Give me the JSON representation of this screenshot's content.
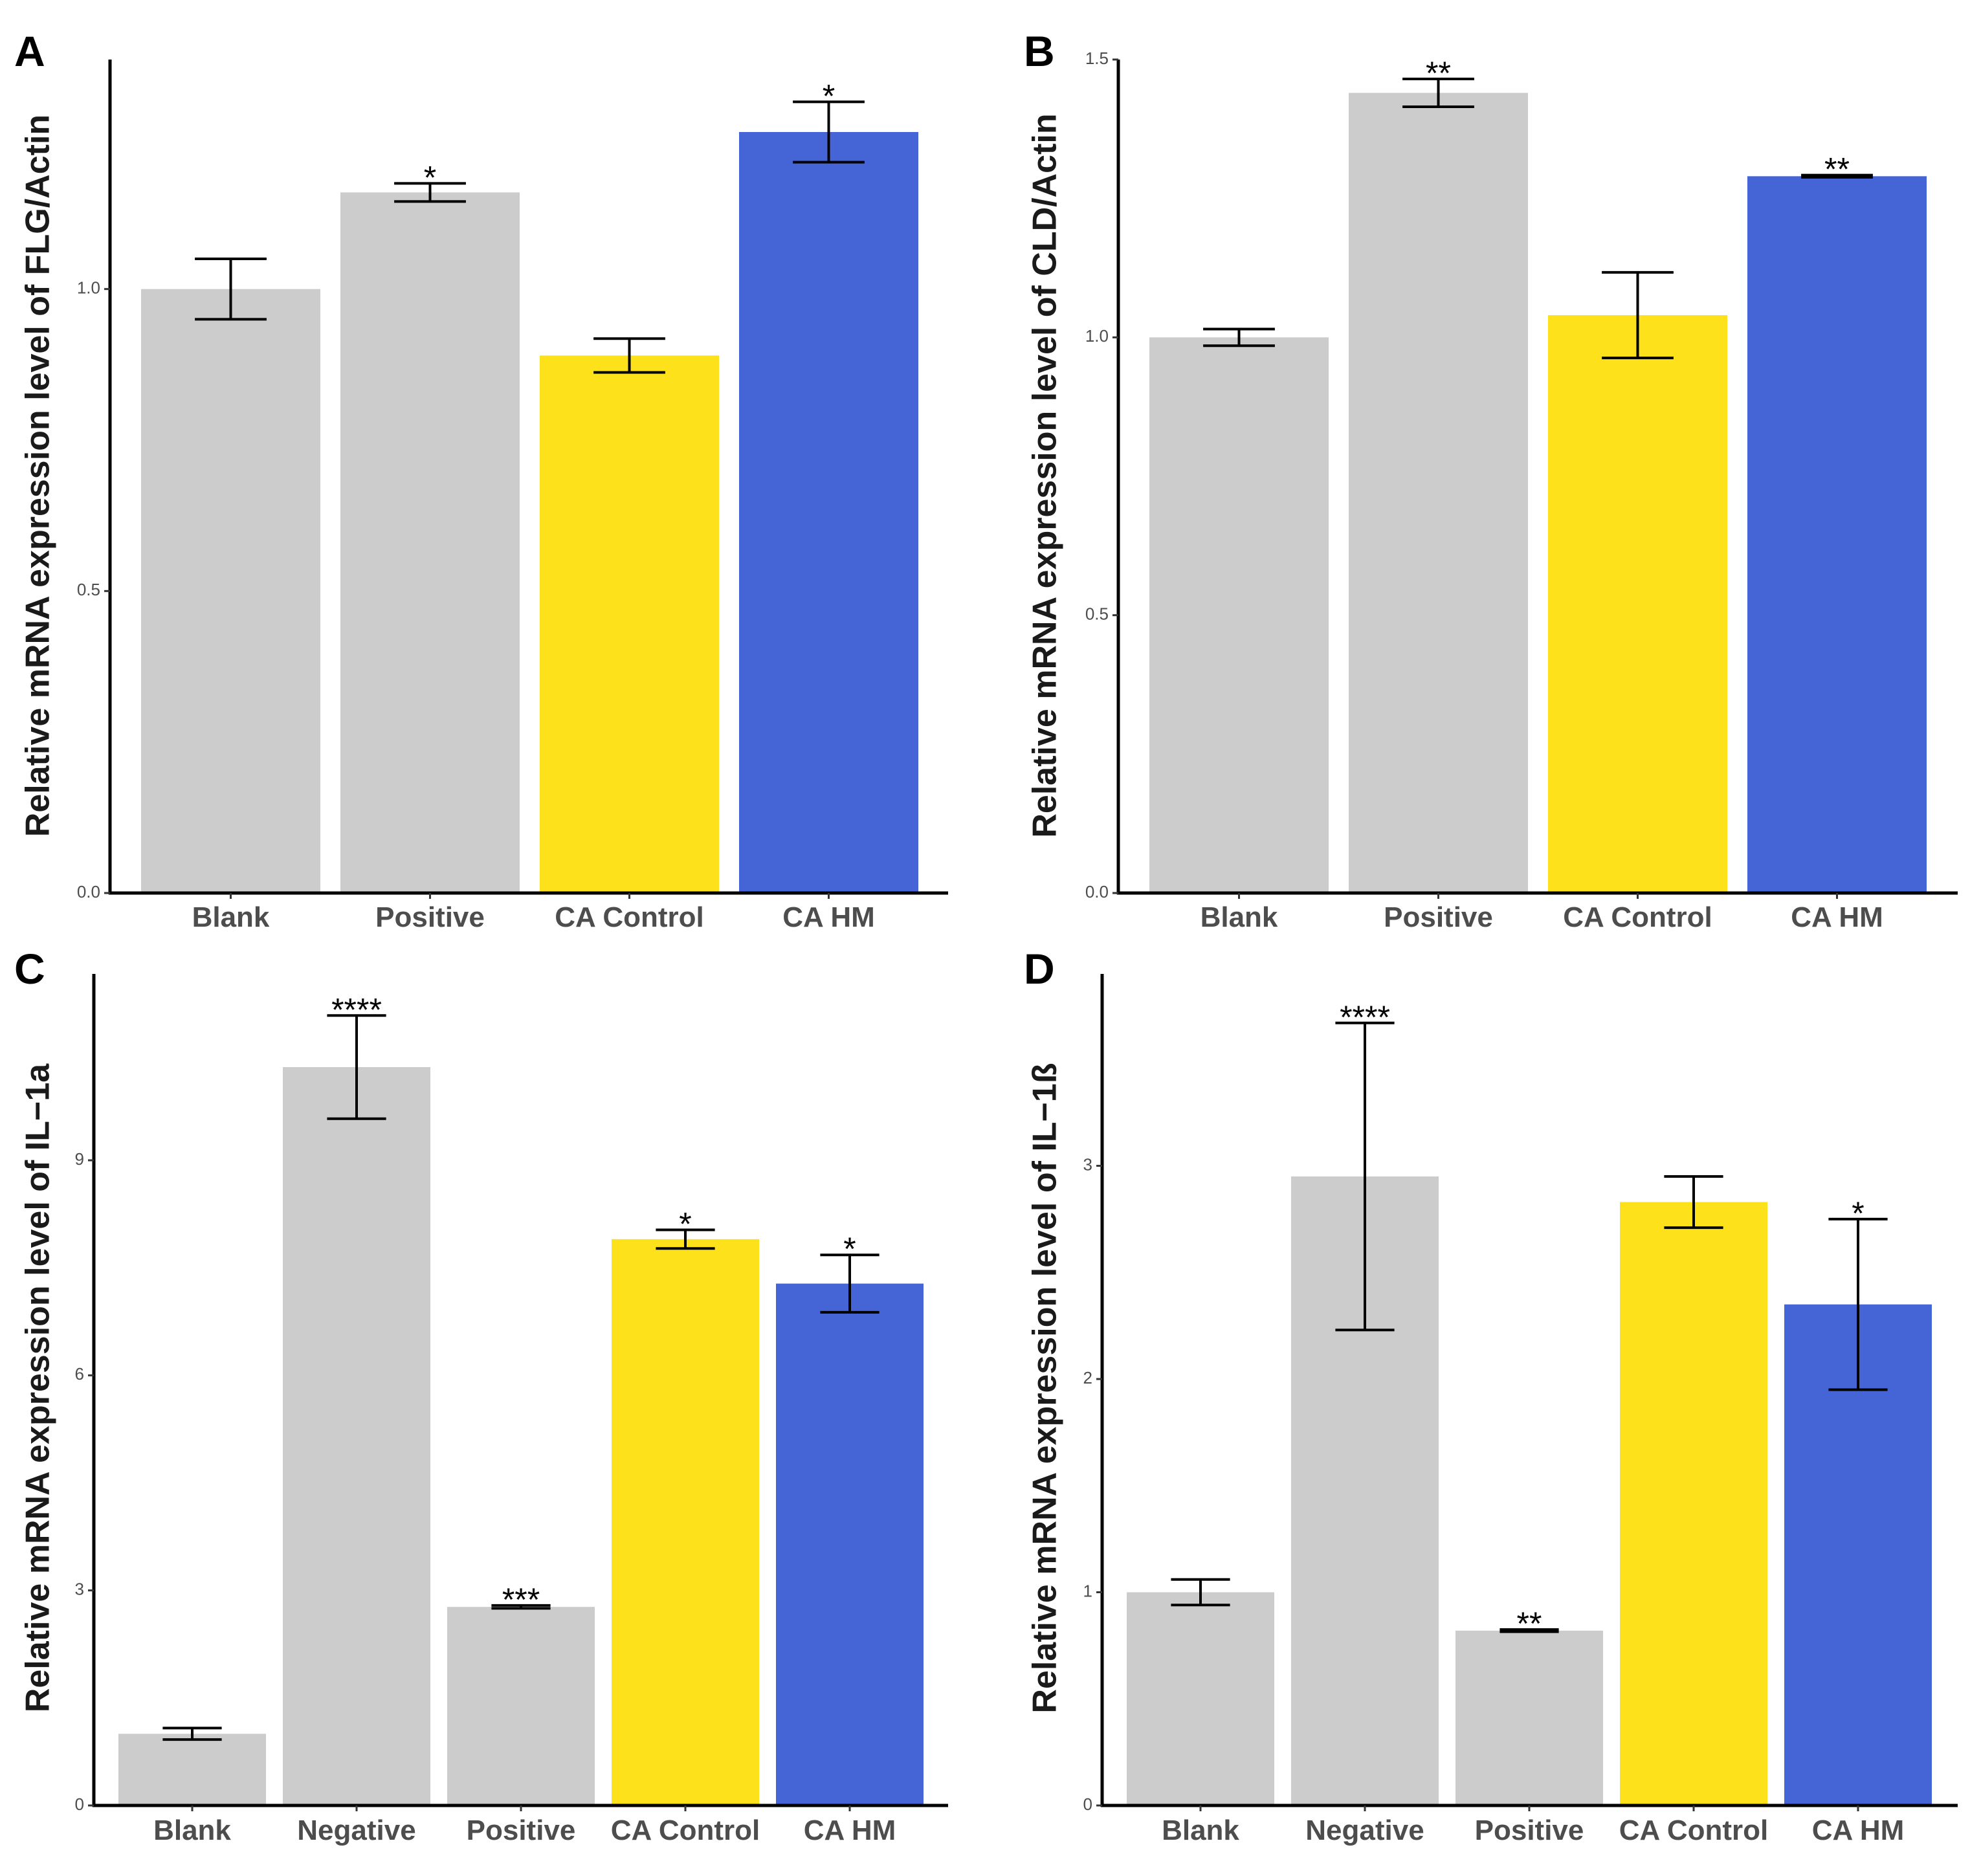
{
  "chart_data": [
    {
      "type": "bar",
      "panel": "A",
      "ylabel": "Relative mRNA expression level of FLG/Actin",
      "categories": [
        "Blank",
        "Positive",
        "CA Control",
        "CA HM"
      ],
      "values": [
        1.0,
        1.16,
        0.89,
        1.26
      ],
      "error": [
        0.05,
        0.015,
        0.028,
        0.05
      ],
      "significance": [
        "",
        "*",
        "",
        "*"
      ],
      "colors": [
        "#cccccc",
        "#cccccc",
        "#fde11b",
        "#4564d6"
      ],
      "yticks": [
        0.0,
        0.5,
        1.0
      ],
      "ytick_labels": [
        "0.0",
        "0.5",
        "1.0"
      ],
      "ylim": [
        0.0,
        1.38
      ]
    },
    {
      "type": "bar",
      "panel": "B",
      "ylabel": "Relative mRNA expression level of CLD/Actin",
      "categories": [
        "Blank",
        "Positive",
        "CA Control",
        "CA HM"
      ],
      "values": [
        1.0,
        1.44,
        1.04,
        1.29
      ],
      "error": [
        0.015,
        0.025,
        0.077,
        0.002
      ],
      "significance": [
        "",
        "**",
        "",
        "**"
      ],
      "colors": [
        "#cccccc",
        "#cccccc",
        "#fde11b",
        "#4564d6"
      ],
      "yticks": [
        0.0,
        0.5,
        1.0,
        1.5
      ],
      "ytick_labels": [
        "0.0",
        "0.5",
        "1.0",
        "1.5"
      ],
      "ylim": [
        0.0,
        1.5
      ]
    },
    {
      "type": "bar",
      "panel": "C",
      "ylabel": "Relative mRNA expression level of IL−1a",
      "categories": [
        "Blank",
        "Negative",
        "Positive",
        "CA Control",
        "CA HM"
      ],
      "values": [
        1.0,
        10.3,
        2.77,
        7.9,
        7.28
      ],
      "error": [
        0.08,
        0.72,
        0.02,
        0.13,
        0.4
      ],
      "significance": [
        "",
        "****",
        "***",
        "*",
        "*"
      ],
      "colors": [
        "#cccccc",
        "#cccccc",
        "#cccccc",
        "#fde11b",
        "#4564d6"
      ],
      "yticks": [
        0,
        3,
        6,
        9
      ],
      "ytick_labels": [
        "0",
        "3",
        "6",
        "9"
      ],
      "ylim": [
        0,
        11.6
      ]
    },
    {
      "type": "bar",
      "panel": "D",
      "ylabel": "Relative mRNA expression level of IL−1ß",
      "categories": [
        "Blank",
        "Negative",
        "Positive",
        "CA Control",
        "CA HM"
      ],
      "values": [
        1.0,
        2.95,
        0.82,
        2.83,
        2.35
      ],
      "error": [
        0.06,
        0.72,
        0.005,
        0.12,
        0.4
      ],
      "significance": [
        "",
        "****",
        "**",
        "",
        "*"
      ],
      "colors": [
        "#cccccc",
        "#cccccc",
        "#cccccc",
        "#fde11b",
        "#4564d6"
      ],
      "yticks": [
        0,
        1,
        2,
        3
      ],
      "ytick_labels": [
        "0",
        "1",
        "2",
        "3"
      ],
      "ylim": [
        0,
        3.9
      ]
    }
  ]
}
